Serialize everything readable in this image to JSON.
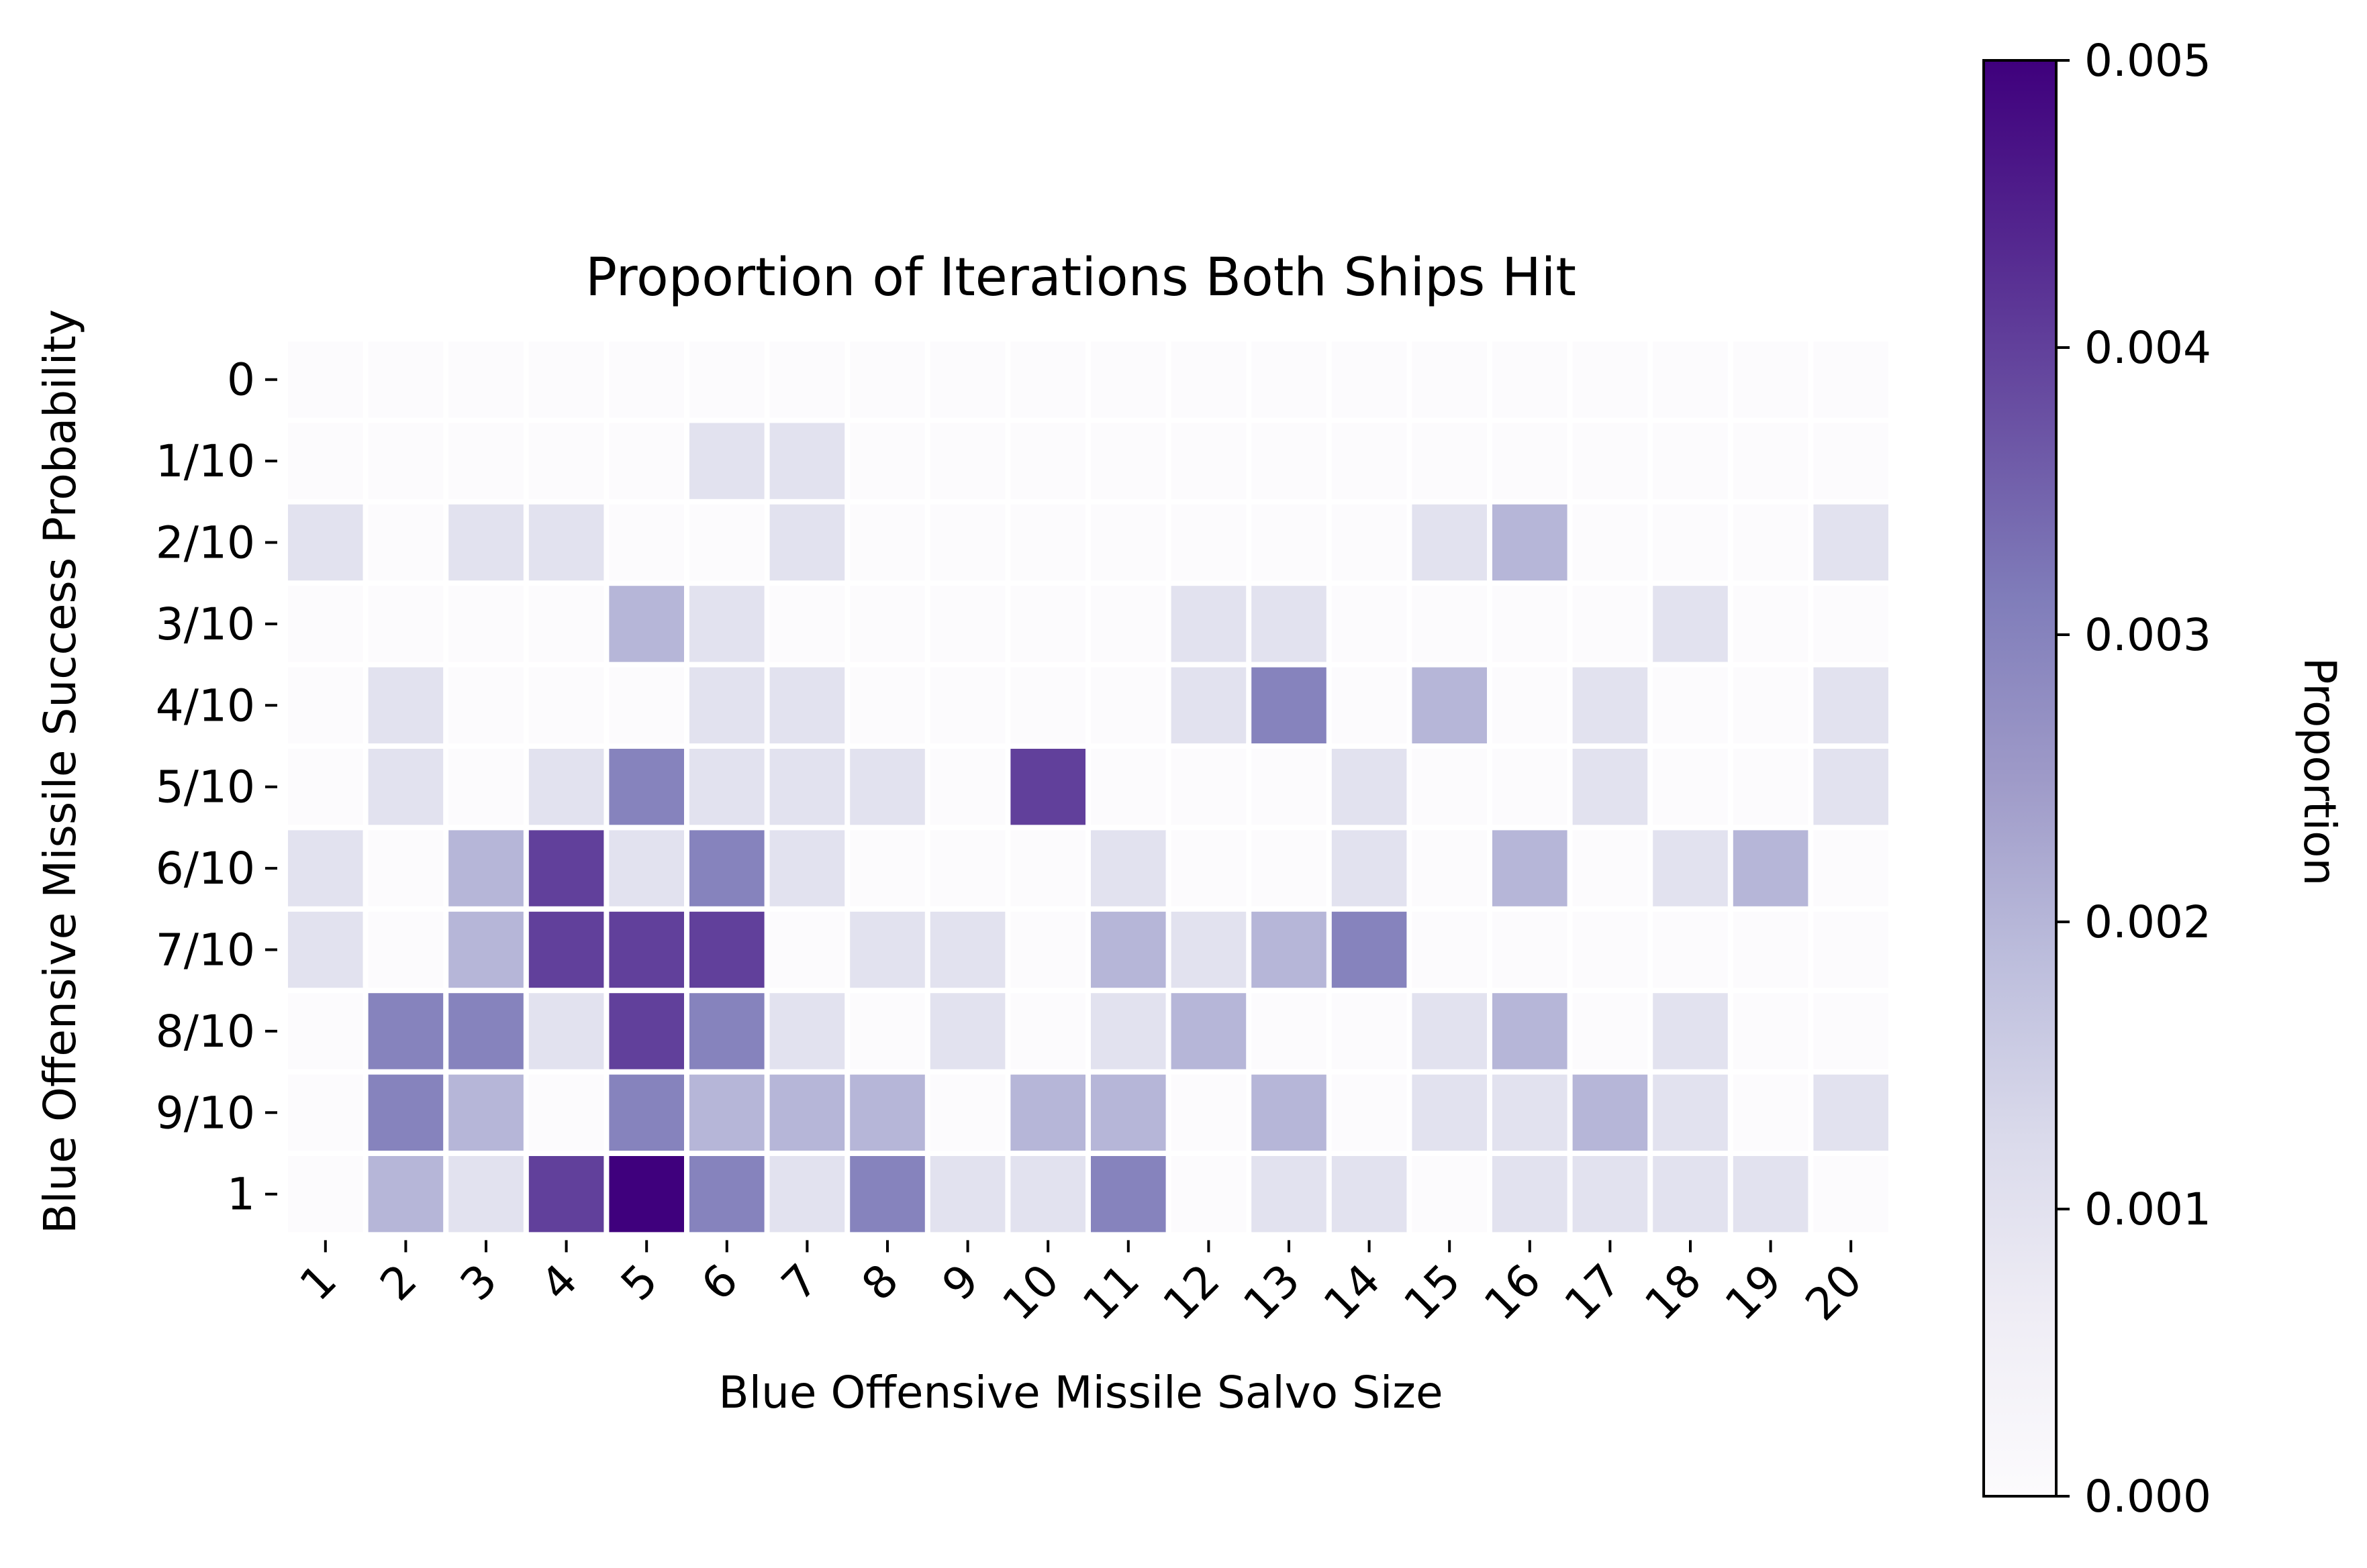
{
  "chart_data": {
    "type": "heatmap",
    "title": "Proportion of Iterations Both Ships Hit",
    "xlabel": "Blue Offensive Missile Salvo Size",
    "ylabel": "Blue Offensive Missile Success Probability",
    "x_categories": [
      "1",
      "2",
      "3",
      "4",
      "5",
      "6",
      "7",
      "8",
      "9",
      "10",
      "11",
      "12",
      "13",
      "14",
      "15",
      "16",
      "17",
      "18",
      "19",
      "20"
    ],
    "y_categories": [
      "0",
      "1/10",
      "2/10",
      "3/10",
      "4/10",
      "5/10",
      "6/10",
      "7/10",
      "8/10",
      "9/10",
      "1"
    ],
    "values": [
      [
        0,
        0,
        0,
        0,
        0,
        0,
        0,
        0,
        0,
        0,
        0,
        0,
        0,
        0,
        0,
        0,
        0,
        0,
        0,
        0
      ],
      [
        0,
        0,
        0,
        0,
        0,
        0.001,
        0.001,
        0,
        0,
        0,
        0,
        0,
        0,
        0,
        0,
        0,
        0,
        0,
        0,
        0
      ],
      [
        0.001,
        0,
        0.001,
        0.001,
        0,
        0,
        0.001,
        0,
        0,
        0,
        0,
        0,
        0,
        0,
        0.001,
        0.002,
        0,
        0,
        0,
        0.001
      ],
      [
        0,
        0,
        0,
        0,
        0.002,
        0.001,
        0,
        0,
        0,
        0,
        0,
        0.001,
        0.001,
        0,
        0,
        0,
        0,
        0.001,
        0,
        0
      ],
      [
        0,
        0.001,
        0,
        0,
        0,
        0.001,
        0.001,
        0,
        0,
        0,
        0,
        0.001,
        0.003,
        0,
        0.002,
        0,
        0.001,
        0,
        0,
        0.001
      ],
      [
        0,
        0.001,
        0,
        0.001,
        0.003,
        0.001,
        0.001,
        0.001,
        0,
        0.004,
        0,
        0,
        0,
        0.001,
        0,
        0,
        0.001,
        0,
        0,
        0.001
      ],
      [
        0.001,
        0,
        0.002,
        0.004,
        0.001,
        0.003,
        0.001,
        0,
        0,
        0,
        0.001,
        0,
        0,
        0.001,
        0,
        0.002,
        0,
        0.001,
        0.002,
        0
      ],
      [
        0.001,
        0,
        0.002,
        0.004,
        0.004,
        0.004,
        0,
        0.001,
        0.001,
        0,
        0.002,
        0.001,
        0.002,
        0.003,
        0,
        0,
        0,
        0,
        0,
        0
      ],
      [
        0,
        0.003,
        0.003,
        0.001,
        0.004,
        0.003,
        0.001,
        0,
        0.001,
        0,
        0.001,
        0.002,
        0,
        0,
        0.001,
        0.002,
        0,
        0.001,
        0,
        0
      ],
      [
        0,
        0.003,
        0.002,
        0,
        0.003,
        0.002,
        0.002,
        0.002,
        0,
        0.002,
        0.002,
        0,
        0.002,
        0,
        0.001,
        0.001,
        0.002,
        0.001,
        0,
        0.001
      ],
      [
        0,
        0.002,
        0.001,
        0.004,
        0.005,
        0.003,
        0.001,
        0.003,
        0.001,
        0.001,
        0.003,
        0,
        0.001,
        0.001,
        0,
        0.001,
        0.001,
        0.001,
        0.001,
        0
      ]
    ],
    "vmin": 0,
    "vmax": 0.005,
    "colormap": "Purples",
    "colorbar": {
      "label": "Proportion",
      "ticks": [
        "0.000",
        "0.001",
        "0.002",
        "0.003",
        "0.004",
        "0.005"
      ]
    },
    "grid": false,
    "cell_separator_color": "#ffffff"
  }
}
